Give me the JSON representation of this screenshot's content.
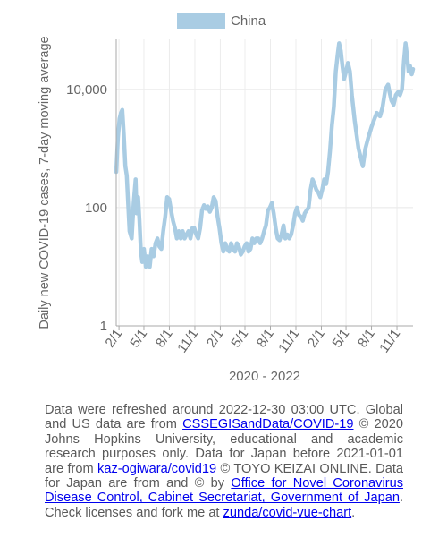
{
  "chart_data": {
    "type": "line",
    "title": "",
    "xlabel": "2020 - 2022",
    "ylabel": "Daily new COVID-19 cases, 7-day moving average",
    "yscale": "log",
    "ylim": [
      1,
      70000
    ],
    "yticks": [
      {
        "value": 1,
        "label": "1"
      },
      {
        "value": 100,
        "label": "100"
      },
      {
        "value": 10000,
        "label": "10,000"
      }
    ],
    "xlim": [
      "2020-01-22",
      "2022-12-29"
    ],
    "xticks": [
      {
        "date": "2020-02-01",
        "label": "2/1"
      },
      {
        "date": "2020-05-01",
        "label": "5/1"
      },
      {
        "date": "2020-08-01",
        "label": "8/1"
      },
      {
        "date": "2020-11-01",
        "label": "11/1"
      },
      {
        "date": "2021-02-01",
        "label": "2/1"
      },
      {
        "date": "2021-05-01",
        "label": "5/1"
      },
      {
        "date": "2021-08-01",
        "label": "8/1"
      },
      {
        "date": "2021-11-01",
        "label": "11/1"
      },
      {
        "date": "2022-02-01",
        "label": "2/1"
      },
      {
        "date": "2022-05-01",
        "label": "5/1"
      },
      {
        "date": "2022-08-01",
        "label": "8/1"
      },
      {
        "date": "2022-11-01",
        "label": "11/1"
      }
    ],
    "grid": true,
    "legend": "top",
    "series": [
      {
        "name": "China",
        "color": "#a9cce3",
        "points": [
          [
            "2020-01-22",
            400
          ],
          [
            "2020-01-28",
            1500
          ],
          [
            "2020-02-03",
            3200
          ],
          [
            "2020-02-08",
            4000
          ],
          [
            "2020-02-13",
            4500
          ],
          [
            "2020-02-18",
            1800
          ],
          [
            "2020-02-24",
            500
          ],
          [
            "2020-02-29",
            350
          ],
          [
            "2020-03-05",
            120
          ],
          [
            "2020-03-10",
            40
          ],
          [
            "2020-03-18",
            30
          ],
          [
            "2020-03-25",
            120
          ],
          [
            "2020-04-01",
            300
          ],
          [
            "2020-04-05",
            80
          ],
          [
            "2020-04-10",
            150
          ],
          [
            "2020-04-15",
            60
          ],
          [
            "2020-04-20",
            18
          ],
          [
            "2020-04-25",
            12
          ],
          [
            "2020-05-01",
            20
          ],
          [
            "2020-05-08",
            10
          ],
          [
            "2020-05-15",
            15
          ],
          [
            "2020-05-22",
            10
          ],
          [
            "2020-05-29",
            20
          ],
          [
            "2020-06-05",
            15
          ],
          [
            "2020-06-12",
            25
          ],
          [
            "2020-06-19",
            30
          ],
          [
            "2020-06-26",
            22
          ],
          [
            "2020-07-03",
            20
          ],
          [
            "2020-07-10",
            40
          ],
          [
            "2020-07-17",
            70
          ],
          [
            "2020-07-24",
            150
          ],
          [
            "2020-07-31",
            140
          ],
          [
            "2020-08-07",
            90
          ],
          [
            "2020-08-14",
            60
          ],
          [
            "2020-08-21",
            45
          ],
          [
            "2020-08-28",
            30
          ],
          [
            "2020-09-04",
            40
          ],
          [
            "2020-09-11",
            30
          ],
          [
            "2020-09-18",
            40
          ],
          [
            "2020-09-25",
            30
          ],
          [
            "2020-10-02",
            35
          ],
          [
            "2020-10-09",
            40
          ],
          [
            "2020-10-16",
            30
          ],
          [
            "2020-10-23",
            45
          ],
          [
            "2020-10-30",
            45
          ],
          [
            "2020-11-06",
            35
          ],
          [
            "2020-11-13",
            30
          ],
          [
            "2020-11-20",
            45
          ],
          [
            "2020-11-27",
            90
          ],
          [
            "2020-12-04",
            110
          ],
          [
            "2020-12-11",
            95
          ],
          [
            "2020-12-18",
            105
          ],
          [
            "2020-12-25",
            85
          ],
          [
            "2021-01-01",
            100
          ],
          [
            "2021-01-08",
            150
          ],
          [
            "2021-01-15",
            130
          ],
          [
            "2021-01-22",
            70
          ],
          [
            "2021-01-29",
            45
          ],
          [
            "2021-02-05",
            25
          ],
          [
            "2021-02-12",
            18
          ],
          [
            "2021-02-19",
            25
          ],
          [
            "2021-02-26",
            20
          ],
          [
            "2021-03-05",
            18
          ],
          [
            "2021-03-12",
            25
          ],
          [
            "2021-03-19",
            20
          ],
          [
            "2021-03-26",
            18
          ],
          [
            "2021-04-02",
            25
          ],
          [
            "2021-04-09",
            22
          ],
          [
            "2021-04-16",
            16
          ],
          [
            "2021-04-23",
            18
          ],
          [
            "2021-04-30",
            22
          ],
          [
            "2021-05-07",
            25
          ],
          [
            "2021-05-14",
            18
          ],
          [
            "2021-05-21",
            20
          ],
          [
            "2021-05-28",
            30
          ],
          [
            "2021-06-04",
            25
          ],
          [
            "2021-06-11",
            30
          ],
          [
            "2021-06-18",
            30
          ],
          [
            "2021-06-25",
            25
          ],
          [
            "2021-07-02",
            30
          ],
          [
            "2021-07-09",
            40
          ],
          [
            "2021-07-16",
            50
          ],
          [
            "2021-07-23",
            90
          ],
          [
            "2021-07-30",
            100
          ],
          [
            "2021-08-06",
            120
          ],
          [
            "2021-08-13",
            80
          ],
          [
            "2021-08-20",
            45
          ],
          [
            "2021-08-27",
            30
          ],
          [
            "2021-09-03",
            28
          ],
          [
            "2021-09-10",
            35
          ],
          [
            "2021-09-17",
            50
          ],
          [
            "2021-09-24",
            30
          ],
          [
            "2021-10-01",
            35
          ],
          [
            "2021-10-08",
            30
          ],
          [
            "2021-10-15",
            35
          ],
          [
            "2021-10-22",
            50
          ],
          [
            "2021-10-29",
            80
          ],
          [
            "2021-11-05",
            100
          ],
          [
            "2021-11-12",
            75
          ],
          [
            "2021-11-19",
            70
          ],
          [
            "2021-11-26",
            60
          ],
          [
            "2021-12-03",
            80
          ],
          [
            "2021-12-10",
            90
          ],
          [
            "2021-12-17",
            100
          ],
          [
            "2021-12-24",
            200
          ],
          [
            "2021-12-31",
            300
          ],
          [
            "2022-01-07",
            250
          ],
          [
            "2022-01-14",
            200
          ],
          [
            "2022-01-21",
            180
          ],
          [
            "2022-01-28",
            150
          ],
          [
            "2022-02-04",
            200
          ],
          [
            "2022-02-11",
            300
          ],
          [
            "2022-02-18",
            250
          ],
          [
            "2022-02-25",
            400
          ],
          [
            "2022-03-04",
            900
          ],
          [
            "2022-03-11",
            2500
          ],
          [
            "2022-03-18",
            5000
          ],
          [
            "2022-03-25",
            20000
          ],
          [
            "2022-04-01",
            40000
          ],
          [
            "2022-04-06",
            60000
          ],
          [
            "2022-04-12",
            45000
          ],
          [
            "2022-04-18",
            25000
          ],
          [
            "2022-04-24",
            15000
          ],
          [
            "2022-05-01",
            20000
          ],
          [
            "2022-05-08",
            28000
          ],
          [
            "2022-05-15",
            20000
          ],
          [
            "2022-05-22",
            8000
          ],
          [
            "2022-06-01",
            3000
          ],
          [
            "2022-06-15",
            1000
          ],
          [
            "2022-07-01",
            500
          ],
          [
            "2022-07-10",
            1000
          ],
          [
            "2022-07-20",
            1500
          ],
          [
            "2022-08-01",
            2300
          ],
          [
            "2022-08-10",
            3000
          ],
          [
            "2022-08-20",
            4000
          ],
          [
            "2022-09-01",
            3500
          ],
          [
            "2022-09-10",
            5000
          ],
          [
            "2022-09-20",
            10000
          ],
          [
            "2022-09-30",
            12000
          ],
          [
            "2022-10-05",
            9000
          ],
          [
            "2022-10-12",
            6500
          ],
          [
            "2022-10-20",
            5500
          ],
          [
            "2022-10-28",
            8000
          ],
          [
            "2022-11-05",
            9000
          ],
          [
            "2022-11-12",
            8000
          ],
          [
            "2022-11-19",
            10000
          ],
          [
            "2022-11-26",
            30000
          ],
          [
            "2022-12-02",
            60000
          ],
          [
            "2022-12-08",
            35000
          ],
          [
            "2022-12-13",
            20000
          ],
          [
            "2022-12-18",
            25000
          ],
          [
            "2022-12-24",
            18000
          ],
          [
            "2022-12-29",
            22000
          ]
        ]
      }
    ]
  },
  "note": {
    "t1": "Data were refreshed around 2022-12-30 03:00 UTC. Global and US data are from ",
    "link1": "CSSEGISandData/COVID-19",
    "t2": " © 2020 Johns Hopkins University, educational and academic research purposes only. Data for Japan before 2021-01-01 are from ",
    "link2": "kaz-ogiwara/covid19",
    "t3": " © TOYO KEIZAI ONLINE. Data for Japan are from and © by ",
    "link3": "Office for Novel Coronavirus Disease Control, Cabinet Secretariat, Government of Japan",
    "t4": ". Check licenses and fork me at ",
    "link4": "zunda/covid-vue-chart",
    "t5": "."
  }
}
